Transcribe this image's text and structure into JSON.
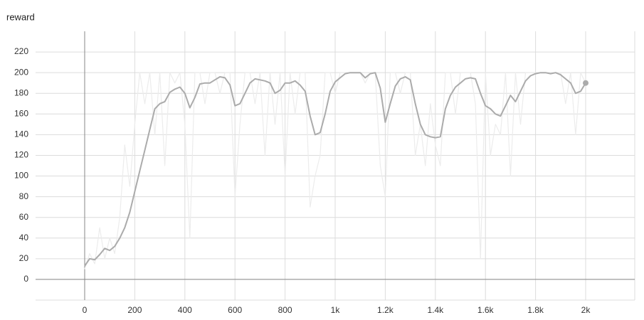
{
  "chart_data": {
    "type": "line",
    "title": "reward",
    "x": [
      0,
      20,
      40,
      60,
      80,
      100,
      120,
      140,
      160,
      180,
      200,
      220,
      240,
      260,
      280,
      300,
      320,
      340,
      360,
      380,
      400,
      420,
      440,
      460,
      480,
      500,
      520,
      540,
      560,
      580,
      600,
      620,
      640,
      660,
      680,
      700,
      720,
      740,
      760,
      780,
      800,
      820,
      840,
      860,
      880,
      900,
      920,
      940,
      960,
      980,
      1000,
      1020,
      1040,
      1060,
      1080,
      1100,
      1120,
      1140,
      1160,
      1180,
      1200,
      1220,
      1240,
      1260,
      1280,
      1300,
      1320,
      1340,
      1360,
      1380,
      1400,
      1420,
      1440,
      1460,
      1480,
      1500,
      1520,
      1540,
      1560,
      1580,
      1600,
      1620,
      1640,
      1660,
      1680,
      1700,
      1720,
      1740,
      1760,
      1780,
      1800,
      1820,
      1840,
      1860,
      1880,
      1900,
      1920,
      1940,
      1960,
      1980,
      2000
    ],
    "series": [
      {
        "color": "#ececec",
        "values": [
          10,
          25,
          15,
          50,
          20,
          40,
          25,
          60,
          130,
          90,
          150,
          200,
          170,
          200,
          140,
          200,
          110,
          200,
          190,
          200,
          150,
          40,
          200,
          200,
          170,
          200,
          200,
          180,
          200,
          200,
          80,
          150,
          200,
          200,
          170,
          200,
          120,
          200,
          150,
          200,
          100,
          200,
          160,
          200,
          200,
          70,
          100,
          120,
          200,
          200,
          180,
          200,
          200,
          200,
          200,
          200,
          190,
          200,
          200,
          110,
          80,
          200,
          200,
          180,
          200,
          200,
          120,
          150,
          110,
          170,
          130,
          110,
          200,
          200,
          160,
          200,
          200,
          200,
          170,
          20,
          200,
          120,
          150,
          140,
          200,
          100,
          200,
          150,
          200,
          200,
          200,
          200,
          200,
          200,
          200,
          200,
          170,
          200,
          140,
          200,
          190
        ]
      },
      {
        "color": "#ababab",
        "values": [
          13,
          20,
          19,
          24,
          30,
          28,
          32,
          40,
          50,
          65,
          85,
          105,
          125,
          145,
          165,
          170,
          172,
          181,
          184,
          186,
          180,
          166,
          176,
          189,
          190,
          190,
          193,
          196,
          195,
          188,
          168,
          170,
          180,
          190,
          194,
          193,
          192,
          190,
          180,
          183,
          190,
          190,
          192,
          188,
          182,
          158,
          140,
          142,
          160,
          182,
          191,
          195,
          199,
          200,
          200,
          200,
          195,
          199,
          200,
          185,
          152,
          170,
          187,
          194,
          196,
          193,
          170,
          150,
          140,
          138,
          137,
          138,
          165,
          178,
          186,
          190,
          194,
          195,
          194,
          180,
          168,
          165,
          160,
          158,
          168,
          178,
          172,
          182,
          192,
          197,
          199,
          200,
          200,
          199,
          200,
          198,
          194,
          190,
          180,
          182,
          190
        ]
      }
    ],
    "xlim": [
      -196,
      2196
    ],
    "xticks": [
      0,
      200,
      400,
      600,
      800,
      {
        "value": 1000,
        "label": "1k"
      },
      {
        "value": 1200,
        "label": "1.2k"
      },
      {
        "value": 1400,
        "label": "1.4k"
      },
      {
        "value": 1600,
        "label": "1.6k"
      },
      {
        "value": 1800,
        "label": "1.8k"
      },
      {
        "value": 2000,
        "label": "2k"
      }
    ],
    "ylim": [
      -20,
      240
    ],
    "yticks": [
      0,
      20,
      40,
      60,
      80,
      100,
      120,
      140,
      160,
      180,
      200,
      220
    ],
    "grid": true
  }
}
